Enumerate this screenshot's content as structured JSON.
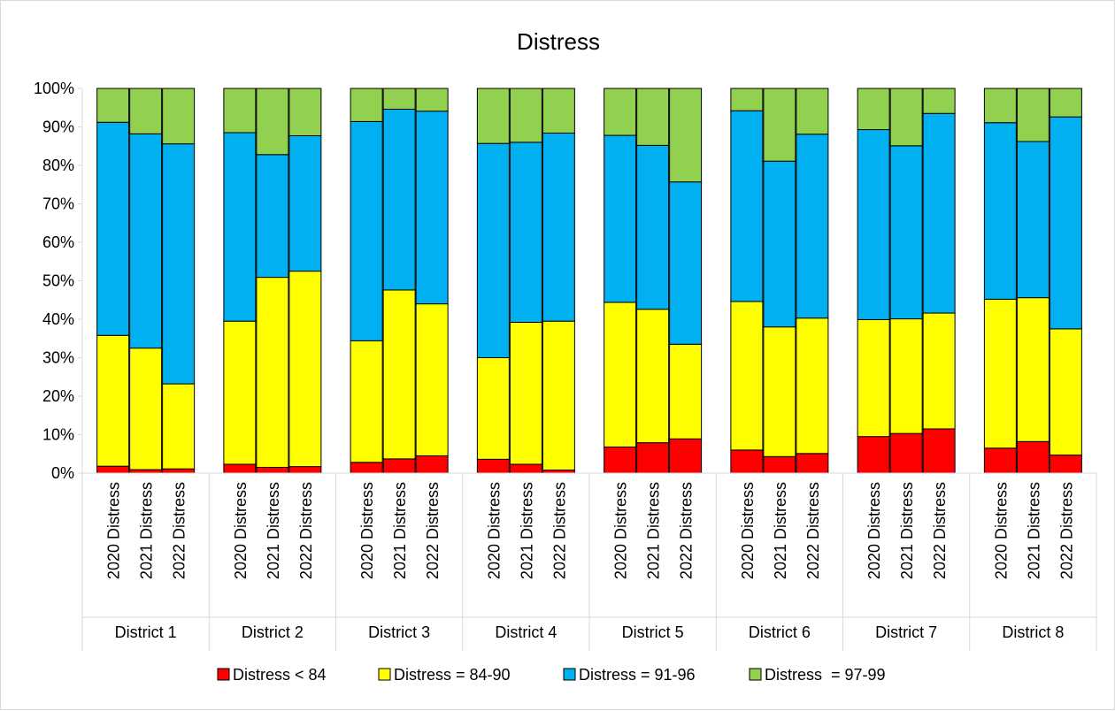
{
  "chart_data": {
    "type": "bar",
    "stacked": "percent",
    "title": "Distress",
    "ylim": [
      0,
      100
    ],
    "yticks": [
      "0%",
      "10%",
      "20%",
      "30%",
      "40%",
      "50%",
      "60%",
      "70%",
      "80%",
      "90%",
      "100%"
    ],
    "grid": false,
    "legend_position": "bottom",
    "groups": [
      {
        "name": "District 1",
        "categories": [
          "2020 Distress",
          "2021 Distress",
          "2022 Distress"
        ]
      },
      {
        "name": "District 2",
        "categories": [
          "2020 Distress",
          "2021 Distress",
          "2022 Distress"
        ]
      },
      {
        "name": "District 3",
        "categories": [
          "2020 Distress",
          "2021 Distress",
          "2022 Distress"
        ]
      },
      {
        "name": "District 4",
        "categories": [
          "2020 Distress",
          "2021 Distress",
          "2022 Distress"
        ]
      },
      {
        "name": "District 5",
        "categories": [
          "2020 Distress",
          "2021 Distress",
          "2022 Distress"
        ]
      },
      {
        "name": "District 6",
        "categories": [
          "2020 Distress",
          "2021 Distress",
          "2022 Distress"
        ]
      },
      {
        "name": "District 7",
        "categories": [
          "2020 Distress",
          "2021 Distress",
          "2022 Distress"
        ]
      },
      {
        "name": "District 8",
        "categories": [
          "2020 Distress",
          "2021 Distress",
          "2022 Distress"
        ]
      }
    ],
    "series": [
      {
        "name": "Distress < 84",
        "color": "#ff0000",
        "values": [
          1.8,
          0.9,
          1.1,
          2.3,
          1.5,
          1.7,
          2.8,
          3.7,
          4.5,
          3.6,
          2.3,
          0.8,
          6.8,
          7.9,
          8.9,
          6.0,
          4.3,
          5.1,
          9.5,
          10.3,
          11.5,
          6.5,
          8.2,
          4.7
        ]
      },
      {
        "name": "Distress = 84-90",
        "color": "#ffff00",
        "values": [
          34.0,
          31.6,
          22.1,
          37.2,
          49.4,
          50.8,
          31.6,
          43.9,
          39.5,
          26.4,
          36.9,
          38.7,
          37.6,
          34.7,
          24.6,
          38.6,
          33.7,
          35.2,
          30.4,
          29.8,
          30.1,
          38.7,
          37.4,
          32.8
        ]
      },
      {
        "name": "Distress = 91-96",
        "color": "#00b0f0",
        "values": [
          55.4,
          55.7,
          62.4,
          49.0,
          31.9,
          35.2,
          57.0,
          47.0,
          50.1,
          55.7,
          46.8,
          48.9,
          43.4,
          42.6,
          42.2,
          49.6,
          43.1,
          47.8,
          49.4,
          45.0,
          51.9,
          45.9,
          40.6,
          55.1
        ]
      },
      {
        "name": "Distress  = 97-99",
        "color": "#92d050",
        "values": [
          8.8,
          11.8,
          14.4,
          11.5,
          17.2,
          12.3,
          8.6,
          5.4,
          5.9,
          14.3,
          14.0,
          11.6,
          12.2,
          14.8,
          24.3,
          5.8,
          18.9,
          11.9,
          10.7,
          14.9,
          6.5,
          8.9,
          13.8,
          7.4
        ]
      }
    ]
  }
}
